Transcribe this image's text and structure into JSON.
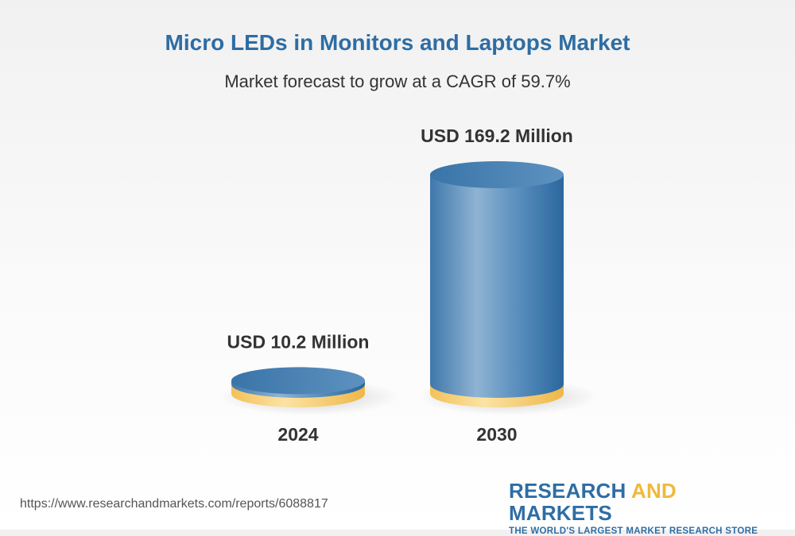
{
  "chart_data": {
    "type": "bar",
    "title": "Micro LEDs in Monitors and Laptops Market",
    "subtitle": "Market forecast to grow at a CAGR of 59.7%",
    "categories": [
      "2024",
      "2030"
    ],
    "values": [
      10.2,
      169.2
    ],
    "value_labels": [
      "USD 10.2 Million",
      "USD 169.2 Million"
    ],
    "unit": "USD Million",
    "cagr_percent": 59.7,
    "grid": false,
    "legend": "none"
  },
  "colors": {
    "title": "#2e6da4",
    "cylinder_blue": "#4a86b8",
    "cylinder_base_gold": "#f3c969",
    "brand_blue": "#2e6da4",
    "brand_gold": "#f0b83c"
  },
  "footer": {
    "url": "https://www.researchandmarkets.com/reports/6088817",
    "brand_part1": "RESEARCH ",
    "brand_part2": "AND",
    "brand_part3": " MARKETS",
    "tagline": "THE WORLD'S LARGEST MARKET RESEARCH STORE"
  }
}
